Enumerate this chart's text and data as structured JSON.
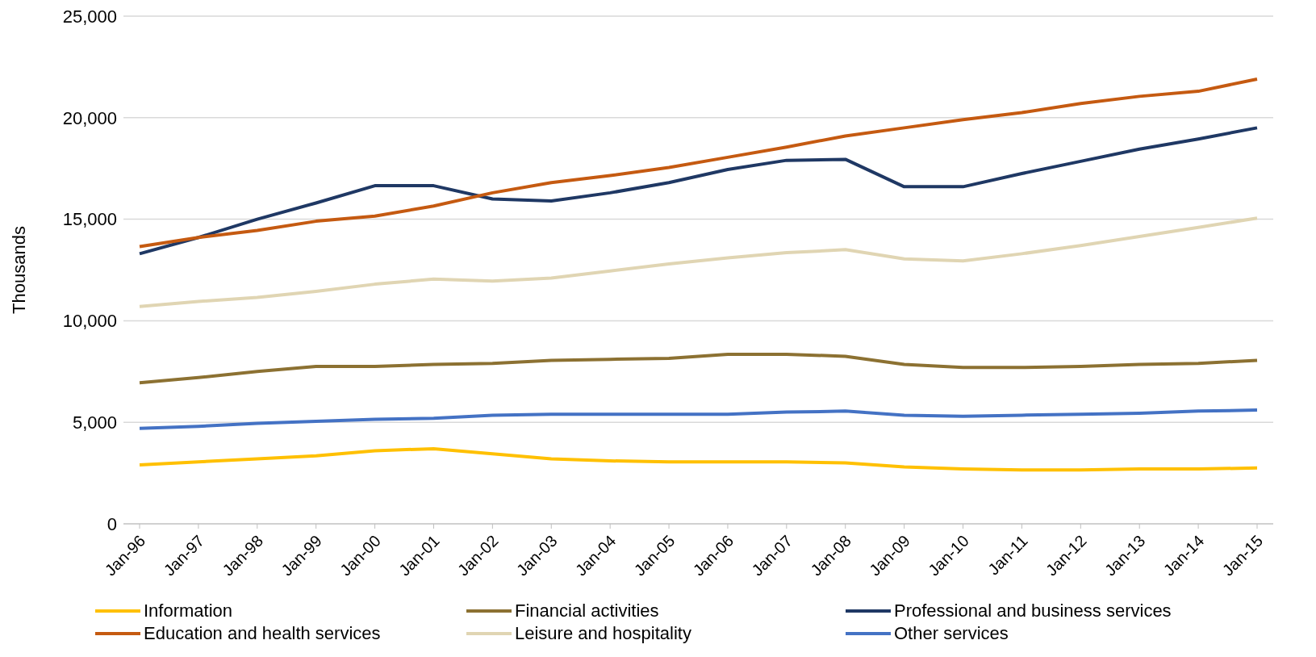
{
  "chart_data": {
    "type": "line",
    "ylabel": "Thousands",
    "categories": [
      "Jan-96",
      "Jan-97",
      "Jan-98",
      "Jan-99",
      "Jan-00",
      "Jan-01",
      "Jan-02",
      "Jan-03",
      "Jan-04",
      "Jan-05",
      "Jan-06",
      "Jan-07",
      "Jan-08",
      "Jan-09",
      "Jan-10",
      "Jan-11",
      "Jan-12",
      "Jan-13",
      "Jan-14",
      "Jan-15"
    ],
    "series": [
      {
        "name": "Information",
        "color": "#ffc000",
        "values": [
          2900,
          3050,
          3200,
          3350,
          3600,
          3700,
          3450,
          3200,
          3100,
          3050,
          3050,
          3050,
          3000,
          2800,
          2700,
          2650,
          2650,
          2700,
          2700,
          2750
        ]
      },
      {
        "name": "Financial activities",
        "color": "#8c7132",
        "values": [
          6950,
          7200,
          7500,
          7750,
          7750,
          7850,
          7900,
          8050,
          8100,
          8150,
          8350,
          8350,
          8250,
          7850,
          7700,
          7700,
          7750,
          7850,
          7900,
          8050
        ]
      },
      {
        "name": "Professional and business services",
        "color": "#1f3864",
        "values": [
          13300,
          14100,
          15000,
          15800,
          16650,
          16650,
          16000,
          15900,
          16300,
          16800,
          17450,
          17900,
          17950,
          16600,
          16600,
          17250,
          17850,
          18450,
          18950,
          19500
        ]
      },
      {
        "name": "Education and health services",
        "color": "#c55a11",
        "values": [
          13650,
          14100,
          14450,
          14900,
          15150,
          15650,
          16300,
          16800,
          17150,
          17550,
          18050,
          18550,
          19100,
          19500,
          19900,
          20250,
          20700,
          21050,
          21300,
          21900
        ]
      },
      {
        "name": "Leisure and hospitality",
        "color": "#e0d5b3",
        "values": [
          10700,
          10950,
          11150,
          11450,
          11800,
          12050,
          11950,
          12100,
          12450,
          12800,
          13100,
          13350,
          13500,
          13050,
          12950,
          13300,
          13700,
          14150,
          14600,
          15050
        ]
      },
      {
        "name": "Other services",
        "color": "#4472c4",
        "values": [
          4700,
          4800,
          4950,
          5050,
          5150,
          5200,
          5350,
          5400,
          5400,
          5400,
          5400,
          5500,
          5550,
          5350,
          5300,
          5350,
          5400,
          5450,
          5550,
          5600
        ]
      }
    ],
    "ylim": [
      0,
      25000
    ],
    "yticks": [
      0,
      {
        "value": 5000,
        "label": "5,000"
      },
      {
        "value": 10000,
        "label": "10,000"
      },
      {
        "value": 15000,
        "label": "15,000"
      },
      {
        "value": 20000,
        "label": "20,000"
      },
      {
        "value": 25000,
        "label": "25,000"
      }
    ],
    "grid": "y",
    "legend": "bottom",
    "marker": "none",
    "line_style": "solid"
  }
}
